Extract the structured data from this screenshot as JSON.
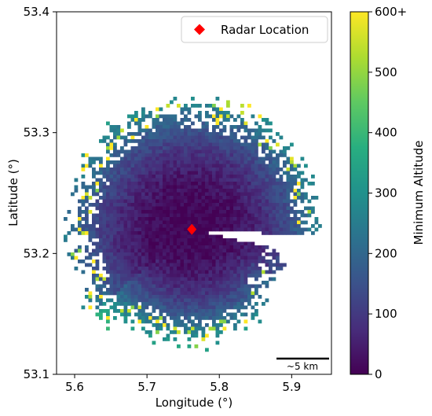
{
  "chart_data": {
    "type": "heatmap",
    "title": "",
    "xlabel": "Longitude (°)",
    "ylabel": "Latitude (°)",
    "xlim": [
      5.575,
      5.955
    ],
    "ylim": [
      53.1,
      53.4
    ],
    "x_ticks": [
      5.6,
      5.7,
      5.8,
      5.9
    ],
    "x_tick_labels": [
      "5.6",
      "5.7",
      "5.8",
      "5.9"
    ],
    "y_ticks": [
      53.1,
      53.2,
      53.3,
      53.4
    ],
    "y_tick_labels": [
      "53.1",
      "53.2",
      "53.3",
      "53.4"
    ],
    "grid": false,
    "colorbar": {
      "label": "Minimum Altitude",
      "colormap": "viridis",
      "range": [
        0,
        600
      ],
      "ticks": [
        0,
        100,
        200,
        300,
        400,
        500,
        600
      ],
      "tick_labels": [
        "0",
        "100",
        "200",
        "300",
        "400",
        "500",
        "600+"
      ]
    },
    "radar": {
      "longitude": 5.762,
      "latitude": 53.22,
      "marker": "diamond",
      "color": "#ff0000",
      "legend_label": "Radar Location"
    },
    "legend": {
      "placement": "top-right",
      "entries": [
        "Radar Location"
      ]
    },
    "scale_bar": {
      "label": "~5 km"
    },
    "coverage": {
      "description_note": "",
      "max_range_deg_lon": 0.2,
      "blocked_sector_bearing_deg": [
        93,
        103
      ],
      "typical_min_altitude_near": 20,
      "typical_min_altitude_far": 350
    }
  }
}
